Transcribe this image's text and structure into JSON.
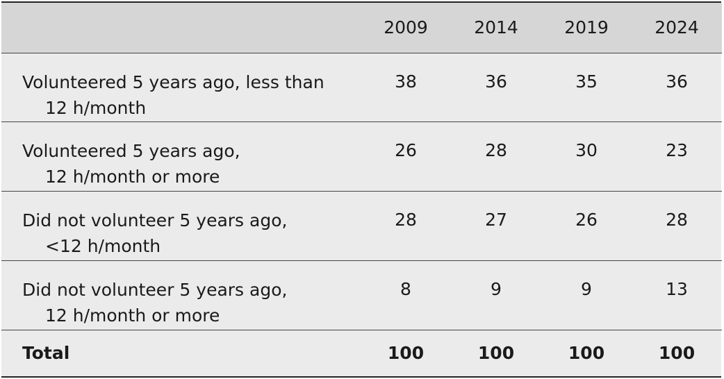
{
  "table": {
    "columns": [
      "",
      "2009",
      "2014",
      "2019",
      "2024"
    ],
    "rows": [
      {
        "label_line1": "Volunteered 5 years ago, less than",
        "label_line2": "12 h/month",
        "values": [
          "38",
          "36",
          "35",
          "36"
        ]
      },
      {
        "label_line1": "Volunteered 5 years ago,",
        "label_line2": "12 h/month or more",
        "values": [
          "26",
          "28",
          "30",
          "23"
        ]
      },
      {
        "label_line1": "Did not volunteer 5 years ago,",
        "label_line2": "<12 h/month",
        "values": [
          "28",
          "27",
          "26",
          "28"
        ]
      },
      {
        "label_line1": "Did not volunteer 5 years ago,",
        "label_line2": "12 h/month or more",
        "values": [
          "8",
          "9",
          "9",
          "13"
        ]
      }
    ],
    "total": {
      "label": "Total",
      "values": [
        "100",
        "100",
        "100",
        "100"
      ]
    }
  }
}
